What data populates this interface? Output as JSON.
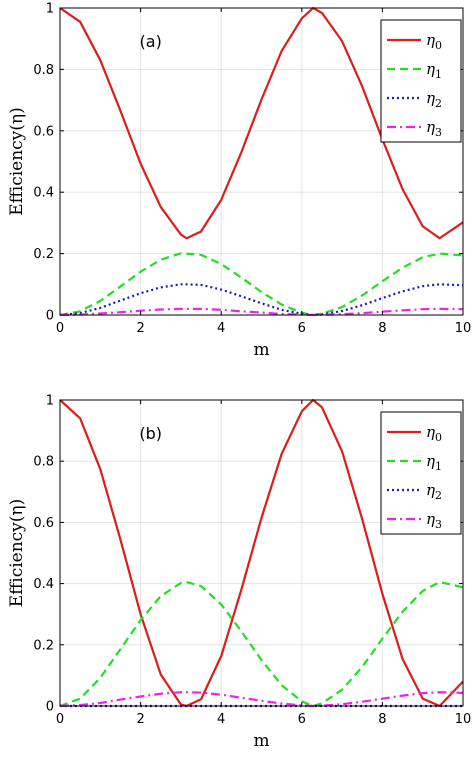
{
  "chart_data": [
    {
      "type": "line",
      "panel_label": "(a)",
      "xlabel": "m",
      "ylabel": "Efficiency(η)",
      "xlim": [
        0,
        10
      ],
      "ylim": [
        0,
        1
      ],
      "xticks": [
        "0",
        "2",
        "4",
        "6",
        "8",
        "10"
      ],
      "yticks": [
        "0",
        "0.2",
        "0.4",
        "0.6",
        "0.8",
        "1"
      ],
      "grid": true,
      "legend_position": "top-right",
      "x": [
        0,
        0.5,
        1,
        1.5,
        2,
        2.5,
        3,
        3.14,
        3.5,
        4,
        4.5,
        5,
        5.5,
        6,
        6.28,
        6.5,
        7,
        7.5,
        8,
        8.5,
        9,
        9.42,
        10
      ],
      "series": [
        {
          "name": "η0",
          "legend_symbol": "η",
          "legend_sub": "0",
          "color": "#dd1c1c",
          "dash": "solid",
          "values": [
            1.0,
            0.955,
            0.83,
            0.665,
            0.493,
            0.352,
            0.262,
            0.25,
            0.272,
            0.375,
            0.53,
            0.702,
            0.86,
            0.966,
            1.0,
            0.984,
            0.892,
            0.744,
            0.572,
            0.41,
            0.289,
            0.25,
            0.302
          ]
        },
        {
          "name": "η1",
          "legend_symbol": "η",
          "legend_sub": "1",
          "color": "#22dd22",
          "dash": "dashed",
          "values": [
            0,
            0.012,
            0.046,
            0.093,
            0.141,
            0.18,
            0.201,
            0.2,
            0.196,
            0.166,
            0.122,
            0.075,
            0.034,
            0.007,
            0,
            0.004,
            0.026,
            0.064,
            0.11,
            0.154,
            0.188,
            0.2,
            0.194
          ]
        },
        {
          "name": "η2",
          "legend_symbol": "η",
          "legend_sub": "2",
          "color": "#1a1acc",
          "dash": "dotted",
          "values": [
            0,
            0.006,
            0.023,
            0.047,
            0.071,
            0.09,
            0.1,
            0.1,
            0.098,
            0.083,
            0.061,
            0.038,
            0.017,
            0.004,
            0,
            0.002,
            0.013,
            0.032,
            0.055,
            0.077,
            0.094,
            0.1,
            0.097
          ]
        },
        {
          "name": "η3",
          "legend_symbol": "η",
          "legend_sub": "3",
          "color": "#ee22ee",
          "dash": "dashdot",
          "values": [
            0,
            0.001,
            0.005,
            0.009,
            0.014,
            0.018,
            0.02,
            0.02,
            0.02,
            0.017,
            0.012,
            0.008,
            0.003,
            0.001,
            0,
            0.0004,
            0.003,
            0.006,
            0.011,
            0.015,
            0.019,
            0.02,
            0.019
          ]
        }
      ]
    },
    {
      "type": "line",
      "panel_label": "(b)",
      "xlabel": "m",
      "ylabel": "Efficiency(η)",
      "xlim": [
        0,
        10
      ],
      "ylim": [
        0,
        1
      ],
      "xticks": [
        "0",
        "2",
        "4",
        "6",
        "8",
        "10"
      ],
      "yticks": [
        "0",
        "0.2",
        "0.4",
        "0.6",
        "0.8",
        "1"
      ],
      "grid": true,
      "legend_position": "top-right",
      "x": [
        0,
        0.5,
        1,
        1.5,
        2,
        2.5,
        3,
        3.14,
        3.5,
        4,
        4.5,
        5,
        5.5,
        6,
        6.28,
        6.5,
        7,
        7.5,
        8,
        8.5,
        9,
        9.42,
        10
      ],
      "series": [
        {
          "name": "η0",
          "legend_symbol": "η",
          "legend_sub": "0",
          "color": "#dd1c1c",
          "dash": "solid",
          "values": [
            1.0,
            0.94,
            0.774,
            0.544,
            0.3,
            0.103,
            0.005,
            0,
            0.022,
            0.163,
            0.38,
            0.615,
            0.824,
            0.963,
            1.0,
            0.976,
            0.832,
            0.61,
            0.366,
            0.154,
            0.024,
            0,
            0.08
          ]
        },
        {
          "name": "η1",
          "legend_symbol": "η",
          "legend_sub": "1",
          "color": "#22dd22",
          "dash": "dashed",
          "values": [
            0,
            0.024,
            0.092,
            0.186,
            0.281,
            0.359,
            0.402,
            0.405,
            0.392,
            0.332,
            0.244,
            0.15,
            0.068,
            0.015,
            0,
            0.009,
            0.053,
            0.128,
            0.22,
            0.308,
            0.376,
            0.405,
            0.388
          ]
        },
        {
          "name": "η2",
          "legend_symbol": "η",
          "legend_sub": "2",
          "color": "#1a1acc",
          "dash": "dotted",
          "values": [
            0,
            0,
            0,
            0,
            0,
            0,
            0,
            0,
            0,
            0,
            0,
            0,
            0,
            0,
            0,
            0,
            0,
            0,
            0,
            0,
            0,
            0,
            0
          ]
        },
        {
          "name": "η3",
          "legend_symbol": "η",
          "legend_sub": "3",
          "color": "#ee22ee",
          "dash": "dashdot",
          "values": [
            0,
            0.003,
            0.01,
            0.021,
            0.031,
            0.04,
            0.045,
            0.045,
            0.044,
            0.037,
            0.027,
            0.017,
            0.008,
            0.002,
            0,
            0.001,
            0.006,
            0.014,
            0.024,
            0.034,
            0.042,
            0.045,
            0.043
          ]
        }
      ]
    }
  ]
}
